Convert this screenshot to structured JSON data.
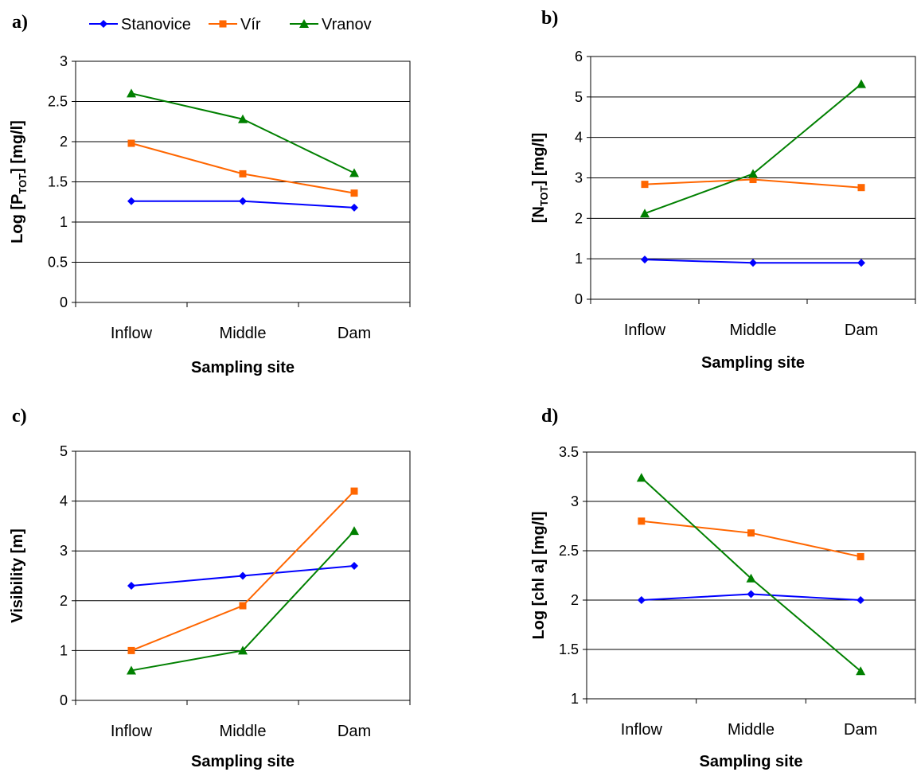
{
  "colors": {
    "Stanovice": "#0000ff",
    "Vír": "#ff6600",
    "Vranov": "#008000"
  },
  "legend": {
    "placement": "top",
    "items": [
      {
        "name": "Stanovice",
        "marker": "diamond"
      },
      {
        "name": "Vír",
        "marker": "square"
      },
      {
        "name": "Vranov",
        "marker": "triangle"
      }
    ]
  },
  "chart_data": [
    {
      "type": "line",
      "panel": "a)",
      "categories": [
        "Inflow",
        "Middle",
        "Dam"
      ],
      "xlabel": "Sampling site",
      "ylabel": {
        "pre": "Log [P",
        "sub": "TOT",
        "post": "] [mg/l]"
      },
      "ylim": [
        0,
        3
      ],
      "yticks": [
        "0",
        "0.5",
        "1",
        "1.5",
        "2",
        "2.5",
        "3"
      ],
      "grid": true,
      "series": [
        {
          "name": "Stanovice",
          "values": [
            1.26,
            1.26,
            1.18
          ]
        },
        {
          "name": "Vír",
          "values": [
            1.98,
            1.6,
            1.36
          ]
        },
        {
          "name": "Vranov",
          "values": [
            2.6,
            2.28,
            1.61
          ]
        }
      ]
    },
    {
      "type": "line",
      "panel": "b)",
      "categories": [
        "Inflow",
        "Middle",
        "Dam"
      ],
      "xlabel": "Sampling site",
      "ylabel": {
        "pre": "[N",
        "sub": "TOT",
        "post": "] [mg/l]"
      },
      "ylim": [
        0,
        6
      ],
      "yticks": [
        "0",
        "1",
        "2",
        "3",
        "4",
        "5",
        "6"
      ],
      "grid": true,
      "series": [
        {
          "name": "Stanovice",
          "values": [
            0.98,
            0.9,
            0.9
          ]
        },
        {
          "name": "Vír",
          "values": [
            2.84,
            2.96,
            2.76
          ]
        },
        {
          "name": "Vranov",
          "values": [
            2.12,
            3.1,
            5.32
          ]
        }
      ]
    },
    {
      "type": "line",
      "panel": "c)",
      "categories": [
        "Inflow",
        "Middle",
        "Dam"
      ],
      "xlabel": "Sampling site",
      "ylabel": {
        "pre": "Visibility [m]",
        "sub": "",
        "post": ""
      },
      "ylim": [
        0,
        5
      ],
      "yticks": [
        "0",
        "1",
        "2",
        "3",
        "4",
        "5"
      ],
      "grid": true,
      "series": [
        {
          "name": "Stanovice",
          "values": [
            2.3,
            2.5,
            2.7
          ]
        },
        {
          "name": "Vír",
          "values": [
            1.0,
            1.9,
            4.2
          ]
        },
        {
          "name": "Vranov",
          "values": [
            0.6,
            1.0,
            3.4
          ]
        }
      ]
    },
    {
      "type": "line",
      "panel": "d)",
      "categories": [
        "Inflow",
        "Middle",
        "Dam"
      ],
      "xlabel": "Sampling site",
      "ylabel": {
        "pre": "Log [chl a] [mg/l]",
        "sub": "",
        "post": ""
      },
      "ylim": [
        1,
        3.5
      ],
      "yticks": [
        "1",
        "1.5",
        "2",
        "2.5",
        "3",
        "3.5"
      ],
      "grid": true,
      "series": [
        {
          "name": "Stanovice",
          "values": [
            2.0,
            2.06,
            2.0
          ]
        },
        {
          "name": "Vír",
          "values": [
            2.8,
            2.68,
            2.44
          ]
        },
        {
          "name": "Vranov",
          "values": [
            3.24,
            2.22,
            1.28
          ]
        }
      ]
    }
  ]
}
